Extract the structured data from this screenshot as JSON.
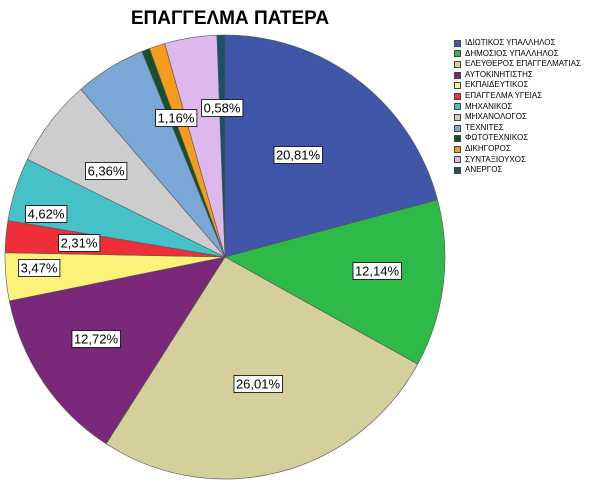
{
  "chart_data": {
    "type": "pie",
    "title": "ΕΠΑΓΓΕΛΜΑ ΠΑΤΕΡΑ",
    "legend_position": "right",
    "slices": [
      {
        "label": "ΙΔΙΩΤΙΚΟΣ ΥΠΑΛΛΗΛΟΣ",
        "value": 20.81,
        "display": "20,81%",
        "color": "#3f56a9"
      },
      {
        "label": "ΔΗΜΟΣΙΟΣ ΥΠΑΛΛΗΛΟΣ",
        "value": 12.14,
        "display": "12,14%",
        "color": "#2eba48"
      },
      {
        "label": "ΕΛΕΥΘΕΡΟΣ ΕΠΑΓΓΕΛΜΑΤΙΑΣ",
        "value": 26.01,
        "display": "26,01%",
        "color": "#d4cf9b"
      },
      {
        "label": "ΑΥΤΟΚΙΝΗΤΙΣΤΗΣ",
        "value": 12.72,
        "display": "12,72%",
        "color": "#79287a"
      },
      {
        "label": "ΕΚΠΑΙΔΕΥΤΙΚΟΣ",
        "value": 3.47,
        "display": "3,47%",
        "color": "#fbf27a"
      },
      {
        "label": "ΕΠΑΓΓΕΛΜΑ ΥΓΕΙΑΣ",
        "value": 2.31,
        "display": "2,31%",
        "color": "#ee2f3a"
      },
      {
        "label": "ΜΗΧΑΝΙΚΟΣ",
        "value": 4.62,
        "display": "4,62%",
        "color": "#47c1c8"
      },
      {
        "label": "ΜΗΧΑΝΟΛΟΓΟΣ",
        "value": 6.36,
        "display": "6,36%",
        "color": "#cdcdcd"
      },
      {
        "label": "ΤΕΧΝΙΤΕΣ",
        "value": 5.2,
        "display": "",
        "color": "#7ba7d7"
      },
      {
        "label": "ΦΩΤΟΤΕΧΝΙΚΟΣ",
        "value": 0.58,
        "display": "",
        "color": "#17502c"
      },
      {
        "label": "ΔΙΚΗΓΟΡΟΣ",
        "value": 1.16,
        "display": "1,16%",
        "color": "#f59b1d"
      },
      {
        "label": "ΣΥΝΤΑΞΙΟΥΧΟΣ",
        "value": 3.83,
        "display": "",
        "color": "#dcb8ed"
      },
      {
        "label": "ΑΝΕΡΓΟΣ",
        "value": 0.58,
        "display": "0,58%",
        "color": "#1a5166"
      }
    ]
  }
}
